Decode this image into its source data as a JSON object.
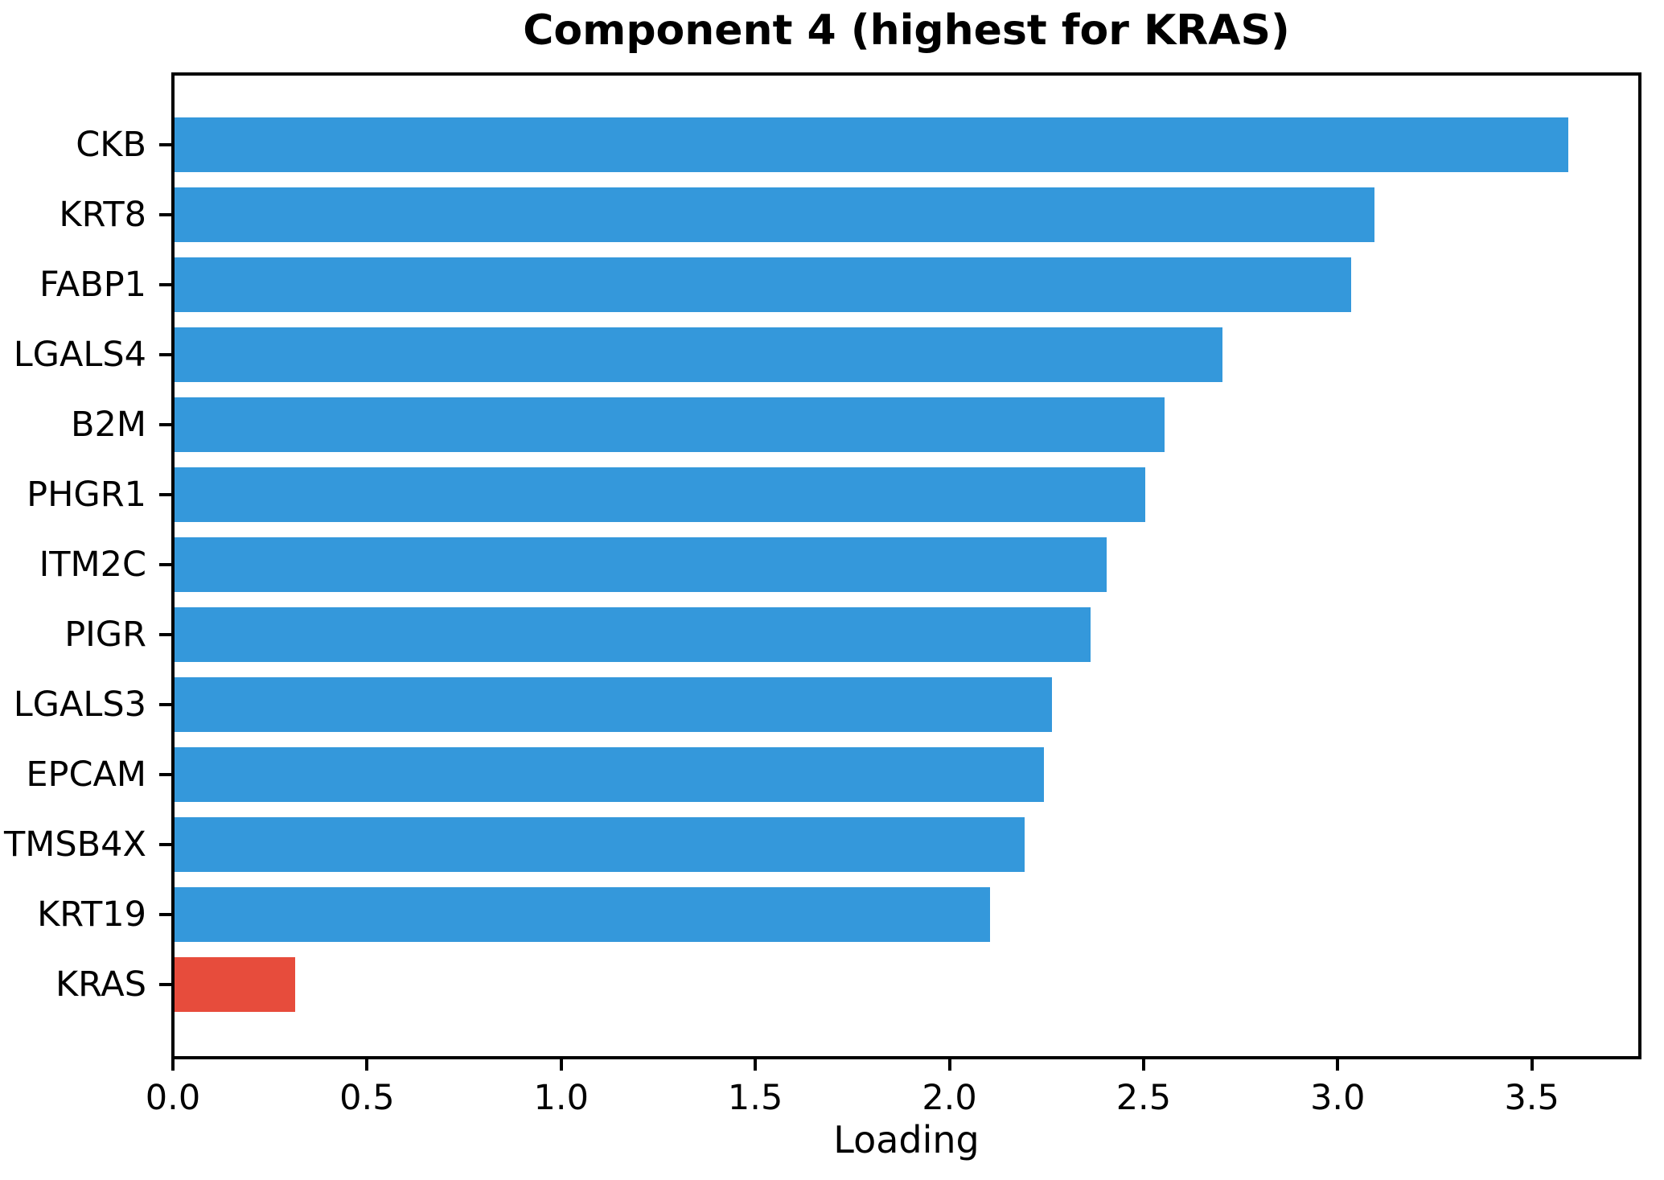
{
  "chart_data": {
    "type": "bar",
    "orientation": "horizontal",
    "title": "Component 4 (highest for KRAS)",
    "xlabel": "Loading",
    "ylabel": "",
    "categories": [
      "CKB",
      "KRT8",
      "FABP1",
      "LGALS4",
      "B2M",
      "PHGR1",
      "ITM2C",
      "PIGR",
      "LGALS3",
      "EPCAM",
      "TMSB4X",
      "KRT19",
      "KRAS"
    ],
    "values": [
      3.59,
      3.09,
      3.03,
      2.7,
      2.55,
      2.5,
      2.4,
      2.36,
      2.26,
      2.24,
      2.19,
      2.1,
      0.31
    ],
    "highlight_category": "KRAS",
    "colors": {
      "bar_default": "#3498db",
      "bar_highlight": "#e74c3c",
      "axis": "#000000",
      "text": "#000000"
    },
    "xlim": [
      0.0,
      3.77
    ],
    "xticks": [
      0.0,
      0.5,
      1.0,
      1.5,
      2.0,
      2.5,
      3.0,
      3.5
    ],
    "xtick_labels": [
      "0.0",
      "0.5",
      "1.0",
      "1.5",
      "2.0",
      "2.5",
      "3.0",
      "3.5"
    ],
    "grid": false,
    "legend": null
  }
}
